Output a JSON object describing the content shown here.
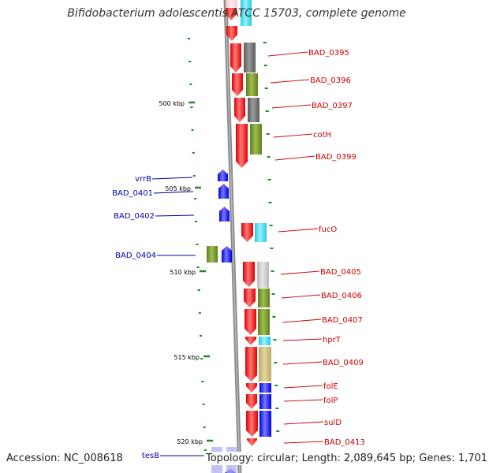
{
  "title": "Bifidobacterium adolescentis ATCC 15703, complete genome",
  "footer": {
    "accession": "Accession: NC_008618",
    "summary": "Topology: circular; Length: 2,089,645 bp; Genes: 1,701"
  },
  "scale_labels": [
    "500 kbp",
    "505 kbp",
    "510 kbp",
    "515 kbp",
    "520 kbp"
  ],
  "colors": {
    "forward": "#ee1111",
    "reverse": "#1111ee",
    "label_forward": "#cc0000",
    "label_reverse": "#0000aa",
    "tick": "#228822",
    "backbone": "#777777",
    "cog_gray": "#666666",
    "cog_green": "#6b8e23",
    "cog_light": "#c7c7c7",
    "cog_tan": "#c9bb7a",
    "cog_cyan": "#33ddee",
    "cog_blue": "#1111ee"
  },
  "forward_labels": [
    "BAD_0395",
    "BAD_0396",
    "BAD_0397",
    "cotH",
    "BAD_0399",
    "fucO",
    "BAD_0405",
    "BAD_0406",
    "BAD_0407",
    "hprT",
    "BAD_0409",
    "folE",
    "folP",
    "sulD",
    "BAD_0413"
  ],
  "reverse_labels": [
    "vrrB",
    "BAD_0401",
    "BAD_0402",
    "BAD_0404",
    "tesB"
  ]
}
